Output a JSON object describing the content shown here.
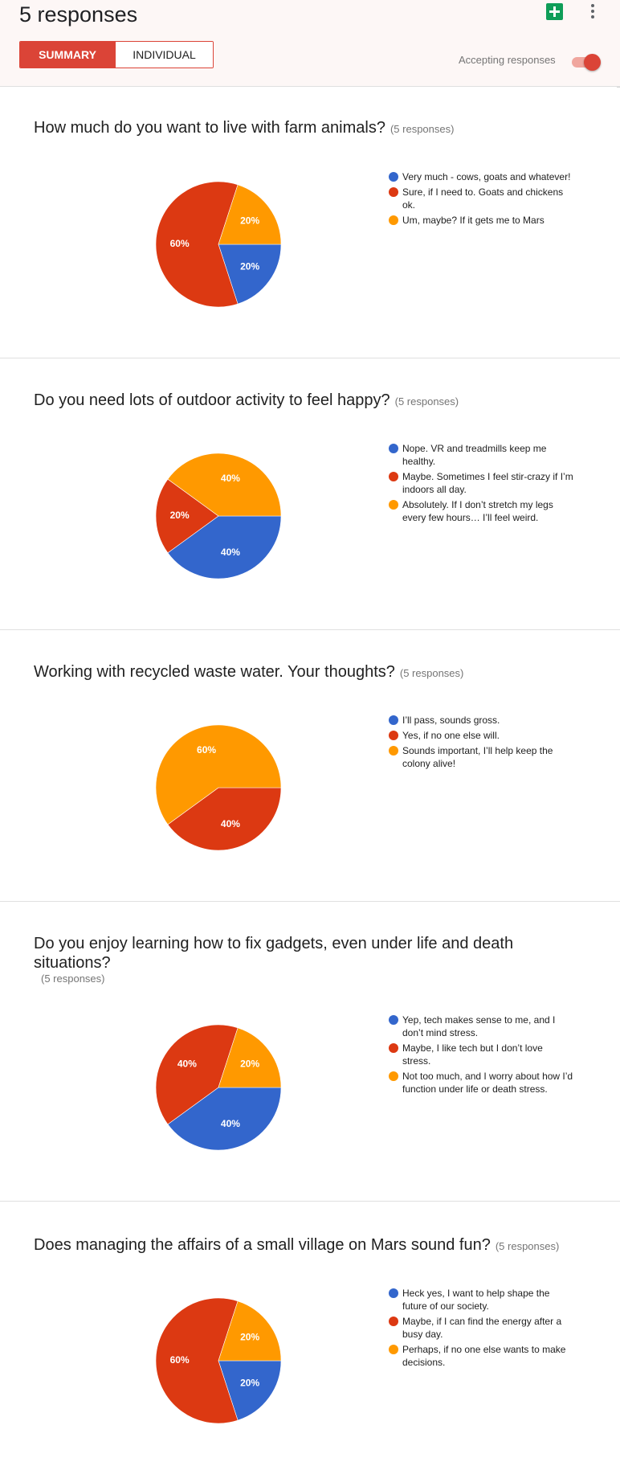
{
  "header": {
    "response_count_title": "5 responses",
    "tabs": [
      {
        "label": "SUMMARY",
        "active": true
      },
      {
        "label": "INDIVIDUAL",
        "active": false
      }
    ],
    "accepting_label": "Accepting responses",
    "accepting_on": true,
    "icons": [
      "sheets-icon",
      "more-vert-icon"
    ]
  },
  "colors": {
    "blue": "#3366cc",
    "red": "#dc3912",
    "orange": "#ff9900",
    "accent": "#db4437"
  },
  "chart_data": [
    {
      "type": "pie",
      "title": "How much do you want to live with farm animals?",
      "responses_label": "(5 responses)",
      "slices": [
        {
          "label": "Very much - cows, goats and whatever!",
          "value": 20,
          "color": "#3366cc"
        },
        {
          "label": "Sure, if I need to. Goats and chickens ok.",
          "value": 60,
          "color": "#dc3912"
        },
        {
          "label": "Um, maybe? If it gets me to Mars",
          "value": 20,
          "color": "#ff9900"
        }
      ]
    },
    {
      "type": "pie",
      "title": "Do you need lots of outdoor activity to feel happy?",
      "responses_label": "(5 responses)",
      "slices": [
        {
          "label": "Nope. VR and treadmills keep me healthy.",
          "value": 40,
          "color": "#3366cc"
        },
        {
          "label": "Maybe. Sometimes I feel stir-crazy if I’m indoors all day.",
          "value": 20,
          "color": "#dc3912"
        },
        {
          "label": "Absolutely. If I don’t stretch my legs every few hours… I’ll feel weird.",
          "value": 40,
          "color": "#ff9900"
        }
      ]
    },
    {
      "type": "pie",
      "title": "Working with recycled waste water. Your thoughts?",
      "responses_label": "(5 responses)",
      "slices": [
        {
          "label": "I’ll pass, sounds gross.",
          "value": 0,
          "color": "#3366cc"
        },
        {
          "label": "Yes, if no one else will.",
          "value": 40,
          "color": "#dc3912"
        },
        {
          "label": "Sounds important, I’ll help keep the colony alive!",
          "value": 60,
          "color": "#ff9900"
        }
      ]
    },
    {
      "type": "pie",
      "title": "Do you enjoy learning how to fix gadgets, even under life and death situations?",
      "responses_label": "(5 responses)",
      "slices": [
        {
          "label": "Yep, tech makes sense to me, and I don’t mind stress.",
          "value": 40,
          "color": "#3366cc"
        },
        {
          "label": "Maybe, I like tech but I don’t love stress.",
          "value": 40,
          "color": "#dc3912"
        },
        {
          "label": "Not too much, and I worry about how I’d function under life or death stress.",
          "value": 20,
          "color": "#ff9900"
        }
      ]
    },
    {
      "type": "pie",
      "title": "Does managing the affairs of a small village on Mars sound fun?",
      "responses_label": "(5 responses)",
      "slices": [
        {
          "label": "Heck yes, I want to help shape the future of our society.",
          "value": 20,
          "color": "#3366cc"
        },
        {
          "label": "Maybe, if I can find the energy after a busy day.",
          "value": 60,
          "color": "#dc3912"
        },
        {
          "label": "Perhaps, if no one else wants to make decisions.",
          "value": 20,
          "color": "#ff9900"
        }
      ]
    }
  ]
}
